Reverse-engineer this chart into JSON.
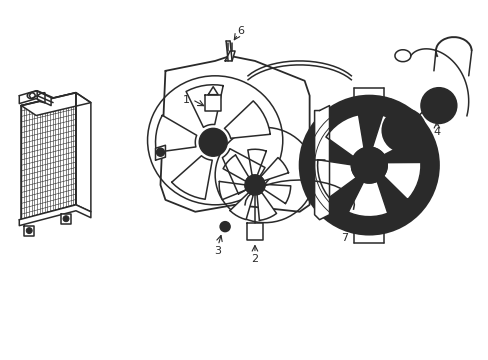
{
  "background_color": "#ffffff",
  "line_color": "#2a2a2a",
  "line_width": 1.1,
  "fig_width": 4.89,
  "fig_height": 3.6,
  "dpi": 100
}
